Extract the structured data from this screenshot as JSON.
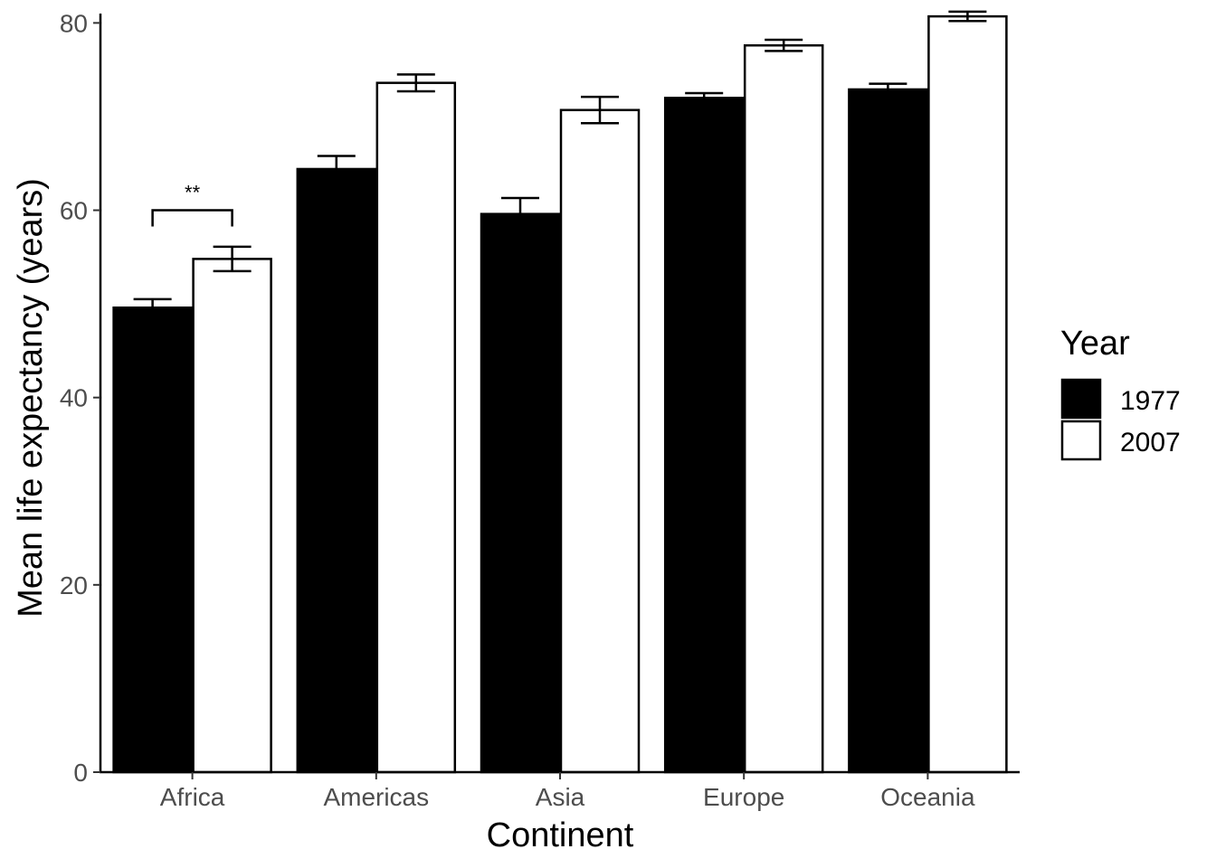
{
  "chart_data": {
    "type": "bar",
    "xlabel": "Continent",
    "ylabel": "Mean life expectancy (years)",
    "categories": [
      "Africa",
      "Americas",
      "Asia",
      "Europe",
      "Oceania"
    ],
    "ylim": [
      0,
      81
    ],
    "yticks": [
      "0",
      "20",
      "40",
      "60",
      "80"
    ],
    "series": [
      {
        "name": "1977",
        "color": "#000000",
        "values": [
          49.6,
          64.4,
          59.6,
          72.0,
          72.9
        ],
        "error": [
          0.9,
          1.4,
          1.7,
          0.5,
          0.6
        ]
      },
      {
        "name": "2007",
        "color": "#ffffff",
        "values": [
          54.8,
          73.6,
          70.7,
          77.6,
          80.7
        ],
        "error": [
          1.3,
          0.9,
          1.4,
          0.6,
          0.5
        ]
      }
    ],
    "legend": {
      "title": "Year",
      "position": "right"
    },
    "annotations": [
      {
        "category": "Africa",
        "text": "**",
        "y": 60
      }
    ],
    "grid": false
  }
}
